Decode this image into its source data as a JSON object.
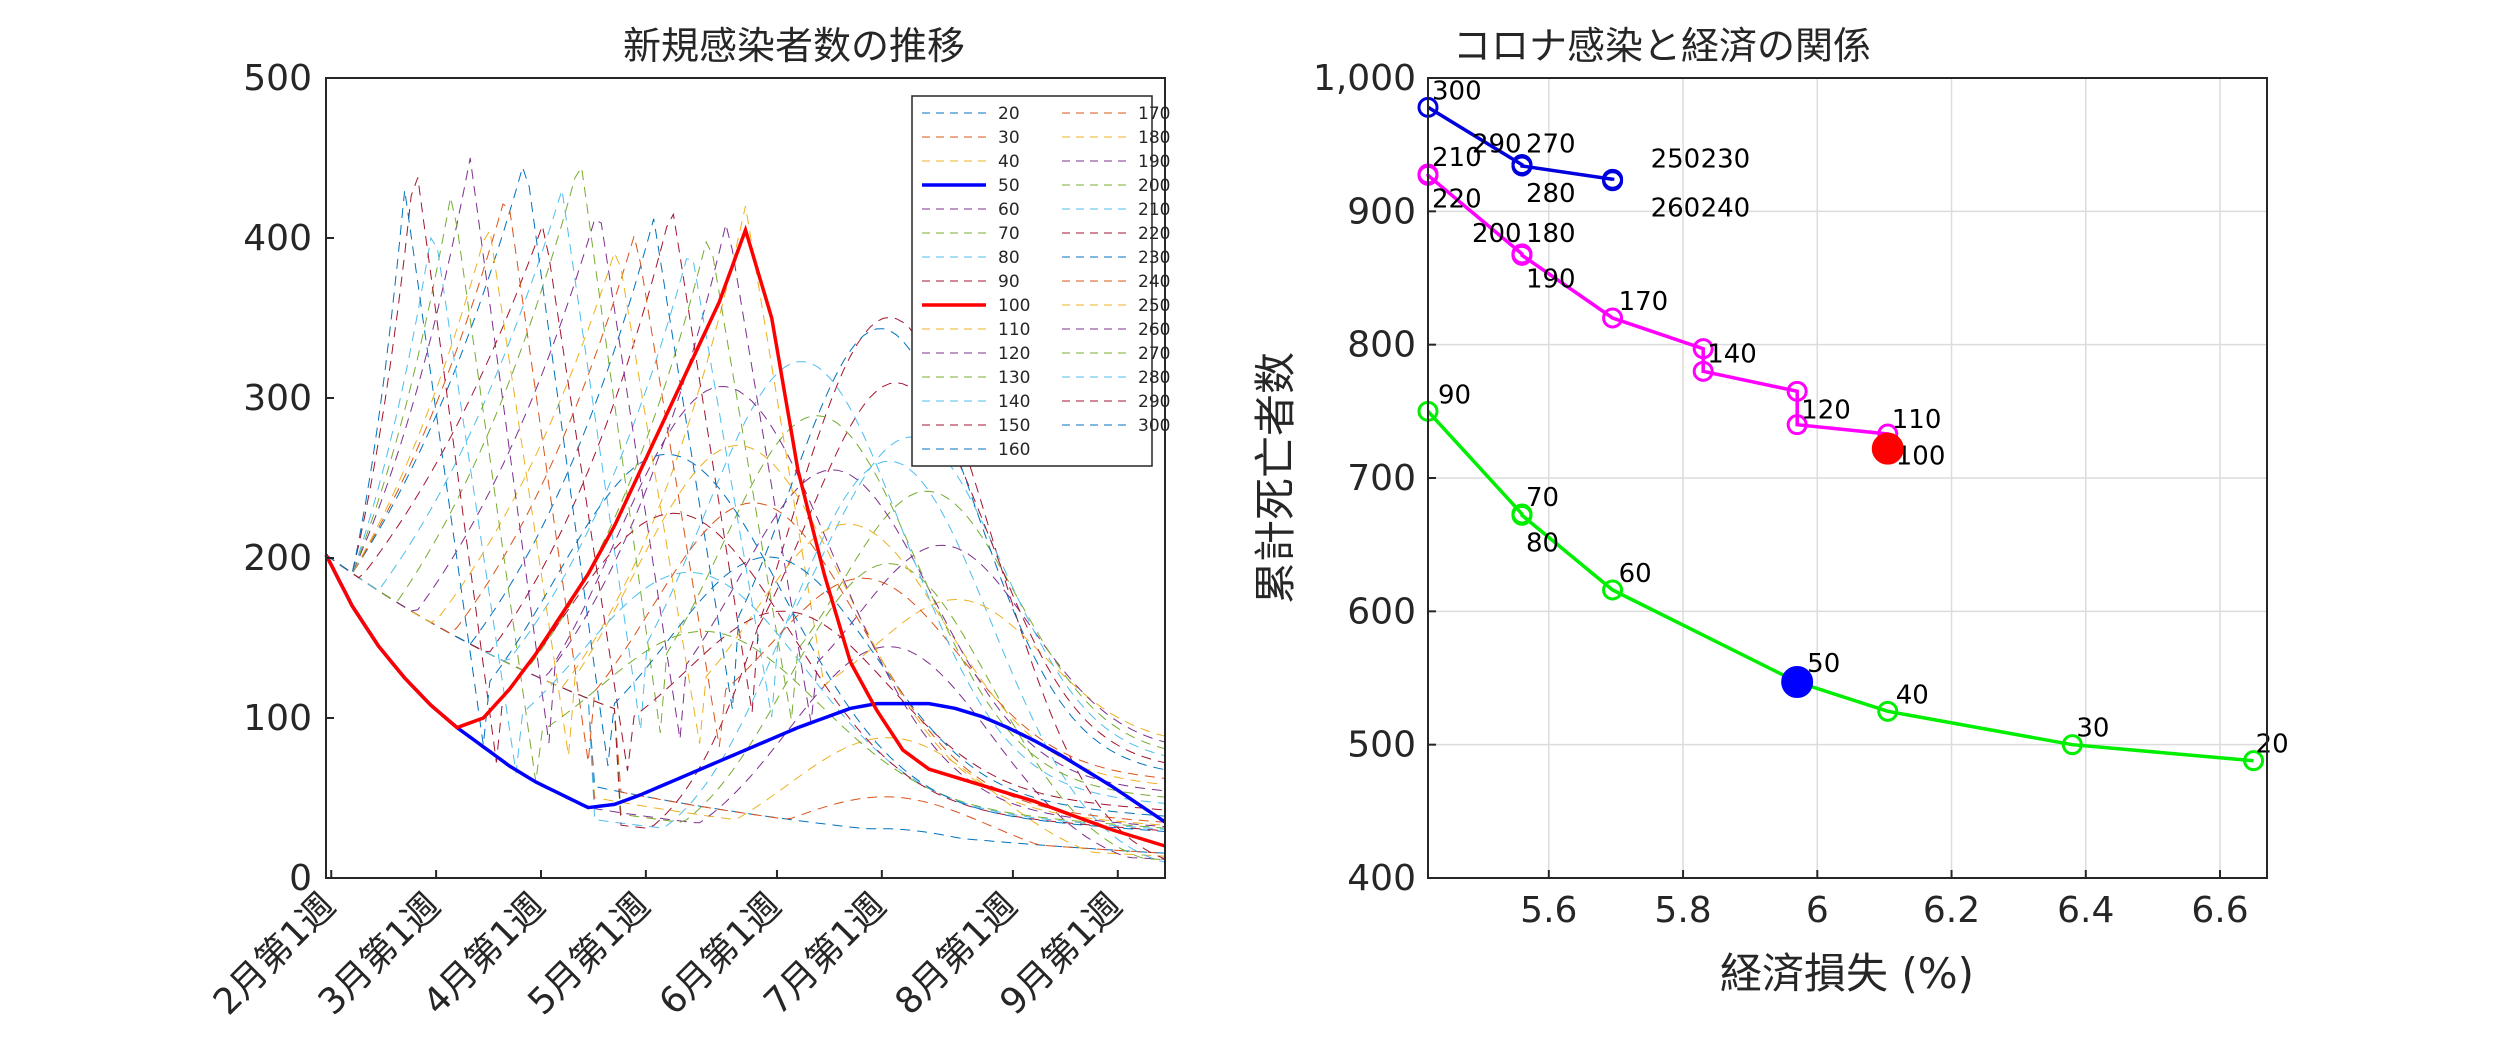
{
  "chart_data": [
    {
      "type": "line",
      "title": "新規感染者数の推移",
      "xlabel": "",
      "ylabel": "",
      "ylim": [
        0,
        500
      ],
      "yticks": [
        0,
        100,
        200,
        300,
        400,
        500
      ],
      "xticks": [
        "2月第1週",
        "3月第1週",
        "4月第1週",
        "5月第1週",
        "6月第1週",
        "7月第1週",
        "8月第1週",
        "9月第1週"
      ],
      "grid": false,
      "legend_position": "top-right",
      "legend": [
        "20",
        "30",
        "40",
        "50",
        "60",
        "70",
        "80",
        "90",
        "100",
        "110",
        "120",
        "130",
        "140",
        "150",
        "160",
        "170",
        "180",
        "190",
        "200",
        "210",
        "220",
        "230",
        "240",
        "250",
        "260",
        "270",
        "280",
        "290",
        "300"
      ],
      "highlight": {
        "50": {
          "x": [
            0,
            1,
            2,
            3,
            4,
            5,
            6,
            7,
            8,
            9,
            10,
            11,
            12,
            13,
            14,
            15,
            16,
            17,
            18,
            19,
            20,
            21,
            22,
            23,
            24,
            25,
            26,
            27,
            28,
            29,
            30,
            31,
            32
          ],
          "y": [
            202,
            170,
            145,
            125,
            108,
            94,
            82,
            70,
            60,
            52,
            44,
            46,
            52,
            59,
            66,
            73,
            80,
            87,
            94,
            100,
            106,
            109,
            109,
            109,
            106,
            101,
            94,
            86,
            77,
            67,
            57,
            46,
            35
          ]
        },
        "100": {
          "x": [
            0,
            1,
            2,
            3,
            4,
            5,
            6,
            7,
            8,
            9,
            10,
            11,
            12,
            13,
            14,
            15,
            16,
            17,
            18,
            19,
            20,
            21,
            22,
            23,
            24,
            25,
            26,
            27,
            28,
            29,
            30,
            31,
            32
          ],
          "y": [
            202,
            170,
            145,
            125,
            108,
            94,
            100,
            118,
            140,
            165,
            190,
            220,
            255,
            290,
            325,
            360,
            405,
            350,
            255,
            190,
            135,
            105,
            80,
            68,
            63,
            58,
            53,
            48,
            42,
            36,
            30,
            25,
            20
          ]
        }
      }
    },
    {
      "type": "scatter",
      "title": "コロナ感染と経済の関係",
      "xlabel": "経済損失 (%)",
      "ylabel": "累計死亡者数",
      "xlim": [
        5.42,
        6.67
      ],
      "ylim": [
        400,
        1000
      ],
      "xticks": [
        5.6,
        5.8,
        6,
        6.2,
        6.4,
        6.6
      ],
      "yticks": [
        400,
        500,
        600,
        700,
        800,
        900,
        1000
      ],
      "ytick_labels": [
        "400",
        "500",
        "600",
        "700",
        "800",
        "900",
        "1,000"
      ],
      "grid": true,
      "series": [
        {
          "color": "#00ee00",
          "points": [
            {
              "label": "90",
              "x": 5.42,
              "y": 750
            },
            {
              "label": "70",
              "x": 5.56,
              "y": 673
            },
            {
              "label": "80",
              "x": 5.56,
              "y": 672
            },
            {
              "label": "60",
              "x": 5.695,
              "y": 616
            },
            {
              "label": "50",
              "x": 5.97,
              "y": 547
            },
            {
              "label": "40",
              "x": 6.105,
              "y": 525
            },
            {
              "label": "30",
              "x": 6.38,
              "y": 500
            },
            {
              "label": "20",
              "x": 6.65,
              "y": 488
            }
          ]
        },
        {
          "color": "#ff00ff",
          "points": [
            {
              "label": "210",
              "x": 5.42,
              "y": 928
            },
            {
              "label": "220",
              "x": 5.42,
              "y": 927
            },
            {
              "label": "200",
              "x": 5.56,
              "y": 868
            },
            {
              "label": "180",
              "x": 5.56,
              "y": 868
            },
            {
              "label": "190",
              "x": 5.56,
              "y": 867
            },
            {
              "label": "170",
              "x": 5.695,
              "y": 820
            },
            {
              "label": "140",
              "x": 5.83,
              "y": 797
            },
            {
              "label": "",
              "x": 5.83,
              "y": 780
            },
            {
              "label": "",
              "x": 5.97,
              "y": 765
            },
            {
              "label": "120",
              "x": 5.97,
              "y": 740
            },
            {
              "label": "110",
              "x": 6.105,
              "y": 733
            },
            {
              "label": "100",
              "x": 6.105,
              "y": 722
            }
          ]
        },
        {
          "color": "#0000dd",
          "points": [
            {
              "label": "300",
              "x": 5.42,
              "y": 978
            },
            {
              "label": "290",
              "x": 5.56,
              "y": 935
            },
            {
              "label": "270",
              "x": 5.56,
              "y": 935
            },
            {
              "label": "280",
              "x": 5.56,
              "y": 934
            },
            {
              "label": "250",
              "x": 5.695,
              "y": 924
            },
            {
              "label": "230",
              "x": 5.695,
              "y": 924
            },
            {
              "label": "260",
              "x": 5.695,
              "y": 923
            },
            {
              "label": "240",
              "x": 5.695,
              "y": 923
            }
          ]
        }
      ],
      "filled": [
        {
          "label": "50",
          "x": 5.97,
          "y": 547,
          "color": "#0000ff"
        },
        {
          "label": "100",
          "x": 6.105,
          "y": 722,
          "color": "#ff0000"
        }
      ]
    }
  ]
}
